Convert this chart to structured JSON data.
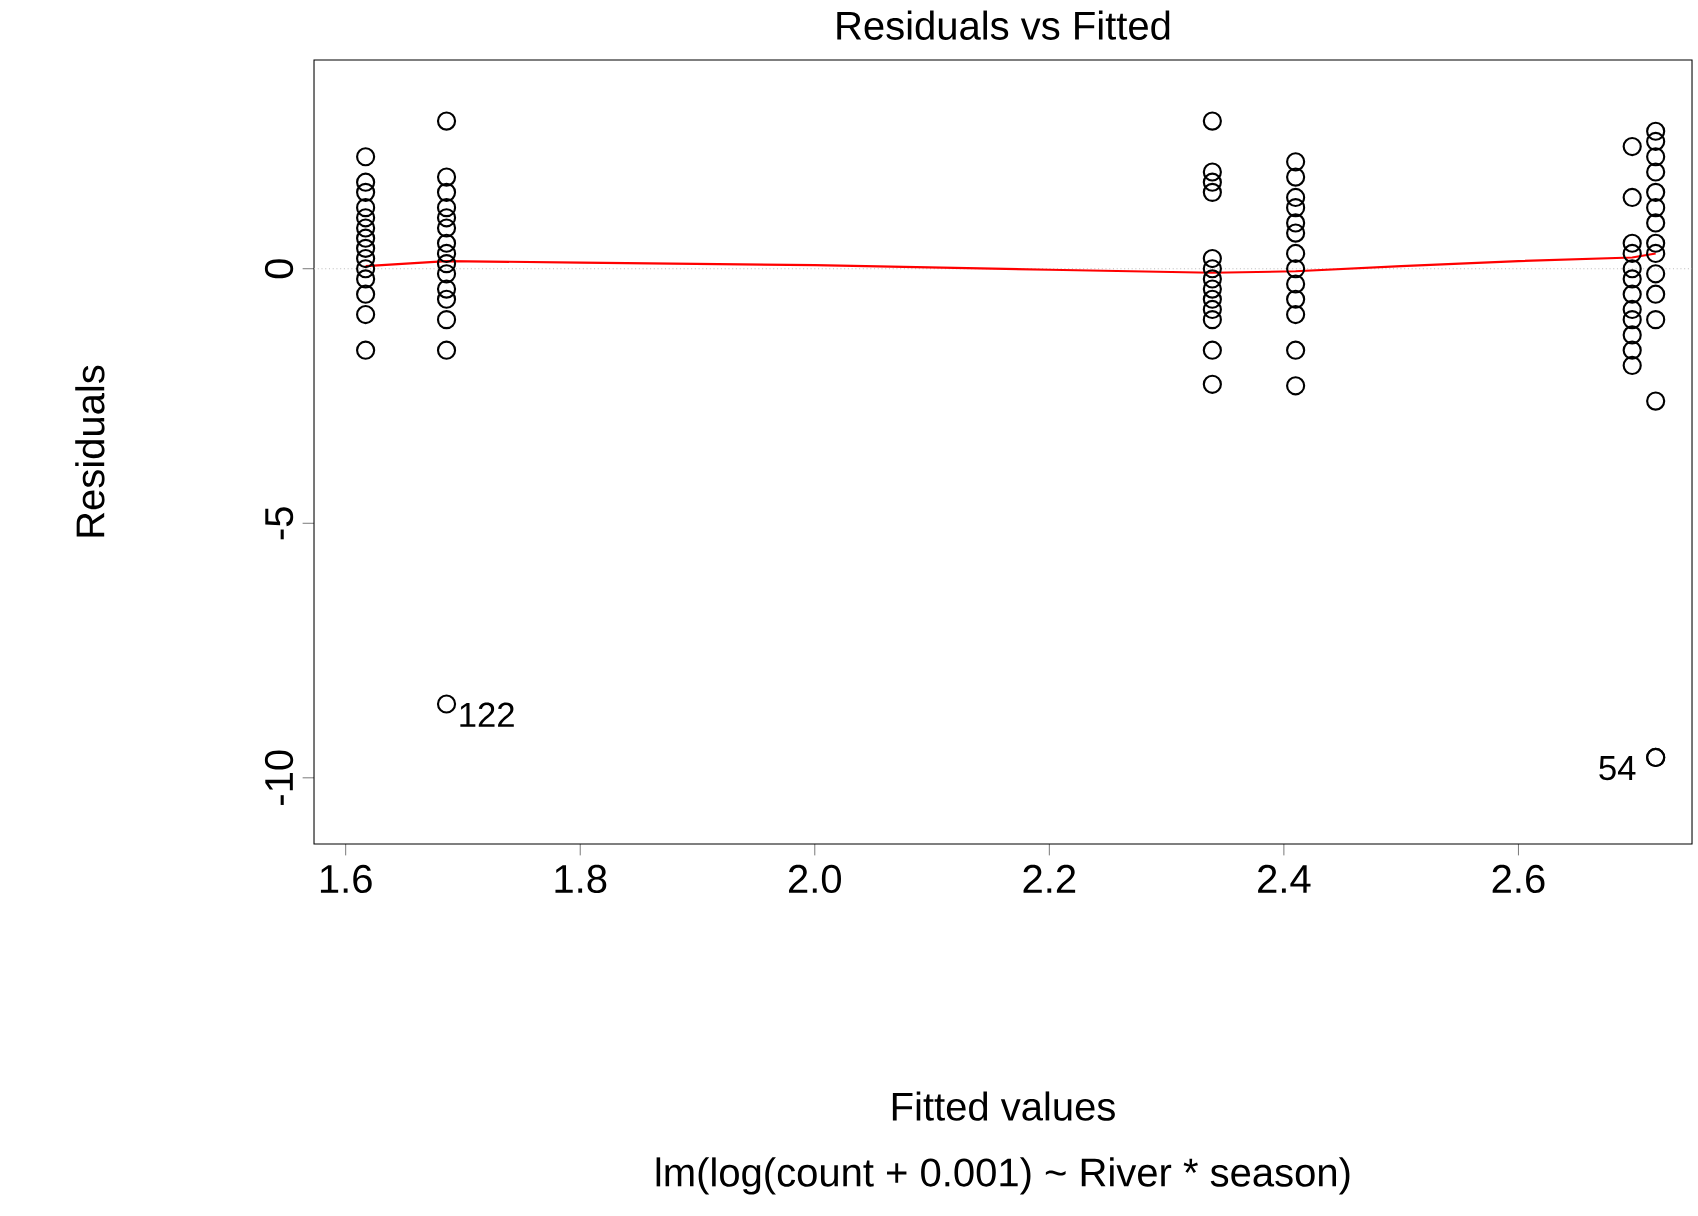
{
  "chart_data": {
    "type": "scatter",
    "title": "Residuals vs Fitted",
    "xlabel": "Fitted values",
    "ylabel": "Residuals",
    "annotations": [
      "lm(log(count + 0.001) ~ River * season)",
      {
        "text": "122",
        "x": 1.686,
        "y": -8.55
      },
      {
        "text": "54",
        "x": 2.717,
        "y": -9.6
      }
    ],
    "xlim": [
      1.573,
      2.748
    ],
    "ylim": [
      -11.3,
      4.1
    ],
    "xticks": [
      1.6,
      1.8,
      {
        "value": 2.0,
        "label": "2.0"
      },
      2.2,
      2.4,
      2.6
    ],
    "yticks": [
      -10,
      -5,
      0
    ],
    "marker": "circle",
    "ref_lines": [
      {
        "axis": "y",
        "value": 0,
        "color": "#bebebe",
        "line_style": "dotted"
      }
    ],
    "series": [
      {
        "color": "#000000",
        "x": [
          1.617,
          1.617,
          1.617,
          1.617,
          1.617,
          1.617,
          1.617,
          1.617,
          1.617,
          1.617,
          1.617,
          1.617,
          1.617,
          1.617,
          1.686,
          1.686,
          1.686,
          1.686,
          1.686,
          1.686,
          1.686,
          1.686,
          1.686,
          1.686,
          1.686,
          1.686,
          1.686,
          1.686,
          1.686,
          2.339,
          2.339,
          2.339,
          2.339,
          2.339,
          2.339,
          2.339,
          2.339,
          2.339,
          2.339,
          2.339,
          2.339,
          2.339,
          2.41,
          2.41,
          2.41,
          2.41,
          2.41,
          2.41,
          2.41,
          2.41,
          2.41,
          2.41,
          2.41,
          2.41,
          2.41,
          2.697,
          2.697,
          2.697,
          2.697,
          2.697,
          2.697,
          2.697,
          2.697,
          2.697,
          2.697,
          2.697,
          2.697,
          2.717,
          2.717,
          2.717,
          2.717,
          2.717,
          2.717,
          2.717,
          2.717,
          2.717,
          2.717,
          2.717,
          2.717,
          2.717,
          2.717,
          2.717
        ],
        "values": [
          2.2,
          1.7,
          1.5,
          1.2,
          1.0,
          0.8,
          0.6,
          0.4,
          0.2,
          0.0,
          -0.2,
          -0.5,
          -0.9,
          -1.6,
          2.9,
          1.8,
          1.5,
          1.2,
          1.0,
          0.8,
          0.5,
          0.3,
          0.1,
          -0.1,
          -0.4,
          -0.6,
          -1.0,
          -1.6,
          -8.55,
          2.9,
          1.9,
          1.7,
          1.5,
          0.2,
          0.0,
          -0.2,
          -0.4,
          -0.6,
          -0.8,
          -1.0,
          -1.6,
          -2.27,
          2.1,
          1.8,
          1.4,
          1.2,
          0.9,
          0.7,
          0.3,
          0.0,
          -0.3,
          -0.6,
          -0.9,
          -1.6,
          -2.3,
          2.4,
          1.4,
          0.5,
          0.3,
          0.0,
          -0.2,
          -0.5,
          -0.8,
          -1.0,
          -1.3,
          -1.6,
          -1.9,
          2.7,
          2.5,
          2.2,
          1.9,
          1.5,
          1.2,
          0.9,
          0.5,
          0.3,
          -0.1,
          -0.5,
          -1.0,
          -2.6,
          -9.6,
          -9.6
        ]
      },
      {
        "type": "line",
        "color": "#ff0000",
        "marker": "none",
        "line_style": "solid",
        "x": [
          1.617,
          1.686,
          1.8,
          2.0,
          2.2,
          2.339,
          2.41,
          2.5,
          2.6,
          2.697,
          2.717
        ],
        "values": [
          0.05,
          0.15,
          0.12,
          0.07,
          -0.02,
          -0.08,
          -0.05,
          0.05,
          0.15,
          0.22,
          0.3
        ]
      }
    ]
  }
}
